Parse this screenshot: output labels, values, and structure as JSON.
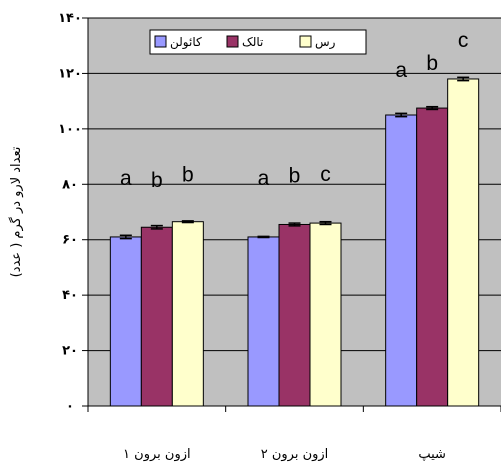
{
  "chart_data": {
    "type": "bar",
    "categories": [
      "ازون برون ۱",
      "ازون برون ۲",
      "شیپ"
    ],
    "series": [
      {
        "name": "کائولن",
        "color": "#9999ff",
        "values": [
          61,
          61,
          105
        ],
        "errors": [
          0.6,
          0.2,
          0.6
        ],
        "letters": [
          "a",
          "a",
          "a"
        ]
      },
      {
        "name": "تالک",
        "color": "#993366",
        "values": [
          64.5,
          65.5,
          107.5
        ],
        "errors": [
          0.6,
          0.5,
          0.5
        ],
        "letters": [
          "b",
          "b",
          "b"
        ]
      },
      {
        "name": "رس",
        "color": "#ffffcc",
        "values": [
          66.5,
          66,
          118
        ],
        "errors": [
          0.3,
          0.5,
          0.6
        ],
        "letters": [
          "b",
          "c",
          "c"
        ]
      }
    ],
    "ylabel": "تعداد لارو در گرم ( عدد)",
    "ylim": [
      0,
      140
    ],
    "yticks": [
      0,
      20,
      40,
      60,
      80,
      100,
      120,
      140
    ],
    "ytick_labels": [
      "۰",
      "۲۰",
      "۴۰",
      "۶۰",
      "۸۰",
      "۱۰۰",
      "۱۲۰",
      "۱۴۰"
    ],
    "grid": true,
    "legend_position": "top",
    "plot_background": "#c0c0c0"
  }
}
